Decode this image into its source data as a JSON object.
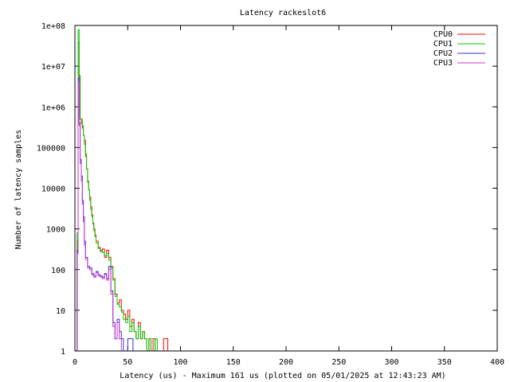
{
  "chart_data": {
    "type": "line",
    "title": "Latency rackeslot6",
    "xlabel": "Latency (us) - Maximum 161 us (plotted on 05/01/2025 at 12:43:23 AM)",
    "ylabel": "Number of latency samples",
    "xlim": [
      0,
      400
    ],
    "ylim": [
      1,
      100000000
    ],
    "yscale": "log",
    "grid": false,
    "legend_position": "top-right",
    "x_ticks": [
      0,
      50,
      100,
      150,
      200,
      250,
      300,
      350,
      400
    ],
    "x_tick_labels": [
      "0",
      "50",
      "100",
      "150",
      "200",
      "250",
      "300",
      "350",
      "400"
    ],
    "y_ticks": [
      1,
      10,
      100,
      1000,
      10000,
      100000,
      1000000,
      10000000,
      100000000
    ],
    "y_tick_labels": [
      "1",
      "10",
      "100",
      "1000",
      "10000",
      "100000",
      "1e+06",
      "1e+07",
      "1e+08"
    ],
    "series": [
      {
        "name": "CPU0",
        "color": "#ff0000",
        "x": [
          1,
          2,
          3,
          4,
          5,
          6,
          7,
          8,
          9,
          10,
          11,
          12,
          13,
          14,
          15,
          16,
          17,
          18,
          19,
          20,
          22,
          24,
          26,
          28,
          30,
          32,
          34,
          36,
          38,
          40,
          42,
          44,
          46,
          48,
          50,
          52,
          54,
          56,
          58,
          60,
          62,
          64,
          66,
          68,
          70,
          72,
          74,
          76,
          78,
          80,
          84,
          88,
          92,
          96,
          100,
          104,
          110,
          116,
          122,
          128,
          135,
          142,
          150,
          161
        ],
        "y": [
          1,
          500,
          40000000,
          5000000,
          500000,
          400000,
          300000,
          200000,
          150000,
          60000,
          30000,
          15000,
          9000,
          6000,
          3500,
          2200,
          1400,
          1000,
          700,
          500,
          350,
          280,
          320,
          200,
          300,
          200,
          120,
          60,
          25,
          15,
          18,
          10,
          8,
          6,
          10,
          4,
          6,
          3,
          2,
          5,
          2,
          3,
          2,
          1,
          2,
          1,
          2,
          1,
          1,
          1,
          2,
          1,
          1,
          1,
          1,
          1,
          1,
          1,
          1,
          1,
          1,
          1,
          1,
          1
        ]
      },
      {
        "name": "CPU1",
        "color": "#00cc00",
        "x": [
          1,
          2,
          3,
          4,
          5,
          6,
          7,
          8,
          9,
          10,
          11,
          12,
          13,
          14,
          15,
          16,
          17,
          18,
          19,
          20,
          22,
          24,
          26,
          28,
          30,
          32,
          34,
          36,
          38,
          40,
          42,
          44,
          46,
          48,
          50,
          52,
          54,
          56,
          58,
          60,
          62,
          64,
          66,
          68,
          70,
          72,
          74,
          76,
          78,
          80,
          84,
          88,
          92,
          96,
          100,
          104,
          110,
          116,
          122,
          128,
          135,
          140
        ],
        "y": [
          1,
          800,
          80000000,
          6000000,
          500000,
          500000,
          350000,
          200000,
          120000,
          70000,
          30000,
          14000,
          9000,
          5000,
          3000,
          2000,
          1300,
          900,
          650,
          450,
          330,
          300,
          260,
          220,
          250,
          170,
          110,
          55,
          22,
          14,
          12,
          9,
          6,
          5,
          7,
          3,
          5,
          3,
          2,
          4,
          2,
          3,
          2,
          1,
          2,
          1,
          1,
          2,
          1,
          1,
          1,
          1,
          1,
          1,
          1,
          1,
          1,
          1,
          1,
          1,
          1,
          1
        ]
      },
      {
        "name": "CPU2",
        "color": "#3333cc",
        "x": [
          1,
          2,
          3,
          4,
          5,
          6,
          7,
          8,
          9,
          10,
          12,
          14,
          16,
          18,
          20,
          22,
          24,
          26,
          28,
          30,
          32,
          34,
          36,
          38,
          40,
          42,
          44,
          46,
          48,
          50,
          55,
          60,
          65,
          70,
          75,
          80,
          85,
          90,
          95
        ],
        "y": [
          1,
          300,
          5000000,
          400000,
          50000,
          20000,
          5000,
          2000,
          500,
          200,
          120,
          110,
          80,
          70,
          90,
          75,
          70,
          65,
          80,
          60,
          120,
          30,
          5,
          2,
          6,
          3,
          2,
          1,
          1,
          2,
          1,
          1,
          1,
          1,
          1,
          1,
          1,
          1,
          1
        ]
      },
      {
        "name": "CPU3",
        "color": "#cc33cc",
        "x": [
          1,
          2,
          3,
          4,
          5,
          6,
          7,
          8,
          9,
          10,
          12,
          14,
          16,
          18,
          20,
          22,
          24,
          26,
          28,
          30,
          32,
          34,
          36,
          38,
          40,
          42,
          44,
          46,
          48,
          50,
          55,
          60,
          65,
          70,
          75
        ],
        "y": [
          1,
          250,
          4000000,
          350000,
          40000,
          15000,
          4000,
          1500,
          400,
          180,
          110,
          100,
          75,
          65,
          85,
          70,
          65,
          60,
          75,
          55,
          100,
          25,
          4,
          2,
          5,
          2,
          1,
          1,
          1,
          1,
          1,
          1,
          1,
          1,
          1
        ]
      }
    ]
  }
}
